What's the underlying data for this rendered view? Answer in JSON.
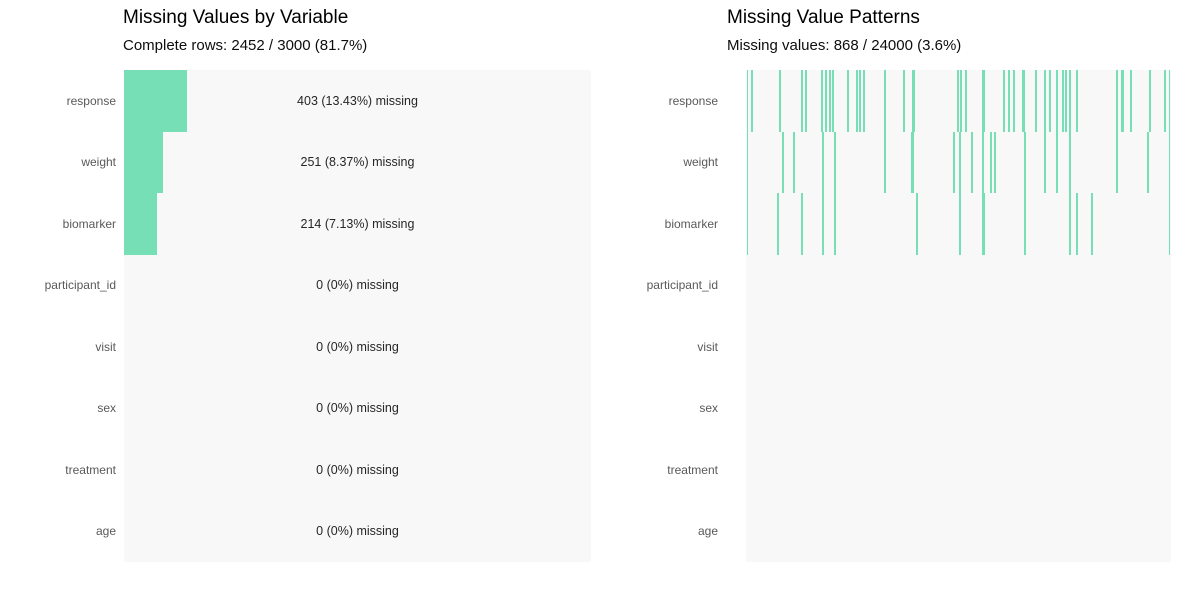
{
  "colors": {
    "background": "#ffffff",
    "plot_background": "#f8f8f8",
    "accent_green": "#76dfb5",
    "label_gray": "#595959",
    "annotation_text": "#262626",
    "title_text": "#000000"
  },
  "left_panel": {
    "title": "Missing Values by Variable",
    "subtitle": "Complete rows: 2452 / 3000 (81.7%)"
  },
  "right_panel": {
    "title": "Missing Value Patterns",
    "subtitle": "Missing values: 868 / 24000 (3.6%)"
  },
  "chart_data": [
    {
      "type": "bar",
      "orientation": "horizontal",
      "title": "Missing Values by Variable",
      "subtitle": "Complete rows: 2452 / 3000 (81.7%)",
      "categories": [
        "response",
        "weight",
        "biomarker",
        "participant_id",
        "visit",
        "sex",
        "treatment",
        "age"
      ],
      "values_pct_missing": [
        13.43,
        8.37,
        7.13,
        0,
        0,
        0,
        0,
        0
      ],
      "counts_missing": [
        403,
        251,
        214,
        0,
        0,
        0,
        0,
        0
      ],
      "annotations": [
        "403 (13.43%) missing",
        "251 (8.37%) missing",
        "214 (7.13%) missing",
        "0 (0%) missing",
        "0 (0%) missing",
        "0 (0%) missing",
        "0 (0%) missing",
        "0 (0%) missing"
      ],
      "xlim": [
        0,
        100
      ],
      "grid": false,
      "legend": false,
      "bar_color": "#76dfb5"
    },
    {
      "type": "heatmap",
      "subtype": "missingness-pattern-strips",
      "title": "Missing Value Patterns",
      "subtitle": "Missing values: 868 / 24000 (3.6%)",
      "x_meaning": "observation index as percent of 3000 rows",
      "categories": [
        "response",
        "weight",
        "biomarker",
        "participant_id",
        "visit",
        "sex",
        "treatment",
        "age"
      ],
      "rows": [
        {
          "label": "response",
          "ticks": [
            0.4,
            1.4,
            8.0,
            13.2,
            14.1,
            17.9,
            18.8,
            19.8,
            20.5,
            24.0,
            26.1,
            26.8,
            27.8,
            32.7,
            37.2,
            49.9,
            50.6,
            51.8,
            60.7,
            61.9,
            63.1,
            68.2,
            70.4,
            71.5,
            73.2,
            74.6,
            75.3,
            76.2,
            77.9,
            87.3,
            90.6,
            95.1,
            98.6,
            99.6
          ],
          "wide_ticks": [
            39.5,
            55.8,
            65.4,
            88.7
          ]
        },
        {
          "label": "weight",
          "ticks": [
            0.4,
            8.7,
            11.3,
            18.1,
            20.9,
            32.7,
            48.9,
            50.4,
            53.2,
            55.8,
            57.6,
            58.6,
            65.6,
            70.4,
            73.2,
            76.2,
            87.3,
            94.6,
            99.6
          ],
          "wide_ticks": [
            39.1
          ]
        },
        {
          "label": "biomarker",
          "ticks": [
            0.4,
            7.5,
            13.2,
            18.1,
            20.9,
            40.2,
            50.4,
            65.6,
            76.2,
            77.9,
            81.4,
            99.6
          ],
          "wide_ticks": [
            55.8
          ]
        },
        {
          "label": "participant_id",
          "ticks": [],
          "wide_ticks": []
        },
        {
          "label": "visit",
          "ticks": [],
          "wide_ticks": []
        },
        {
          "label": "sex",
          "ticks": [],
          "wide_ticks": []
        },
        {
          "label": "treatment",
          "ticks": [],
          "wide_ticks": []
        },
        {
          "label": "age",
          "ticks": [],
          "wide_ticks": []
        }
      ],
      "tick_color": "#76dfb5",
      "grid": false,
      "legend": false
    }
  ]
}
